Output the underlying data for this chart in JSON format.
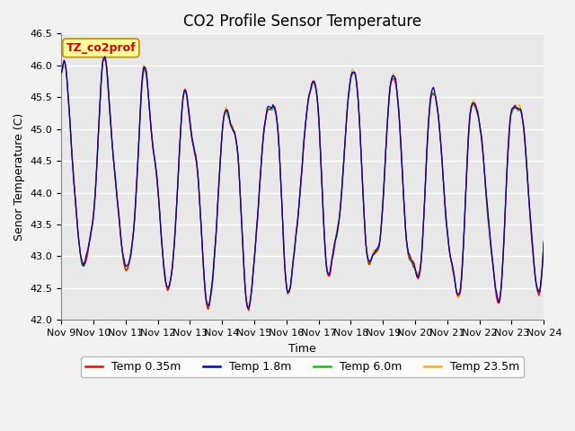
{
  "title": "CO2 Profile Sensor Temperature",
  "ylabel": "Senor Temperature (C)",
  "xlabel": "Time",
  "annotation": "TZ_co2prof",
  "ylim": [
    42.0,
    46.5
  ],
  "xlim": [
    0,
    15
  ],
  "series_colors": [
    "#ff0000",
    "#0000cc",
    "#00cc00",
    "#ffaa00"
  ],
  "series_labels": [
    "Temp 0.35m",
    "Temp 1.8m",
    "Temp 6.0m",
    "Temp 23.5m"
  ],
  "plot_bg": "#e8e8e8",
  "fig_bg": "#f2f2f2",
  "grid_color": "#ffffff",
  "title_fontsize": 12,
  "label_fontsize": 9,
  "tick_fontsize": 8,
  "legend_fontsize": 9,
  "start_day": 9,
  "n_days": 15,
  "yticks": [
    42.0,
    42.5,
    43.0,
    43.5,
    44.0,
    44.5,
    45.0,
    45.5,
    46.0,
    46.5
  ],
  "figsize": [
    6.4,
    4.8
  ],
  "dpi": 100
}
